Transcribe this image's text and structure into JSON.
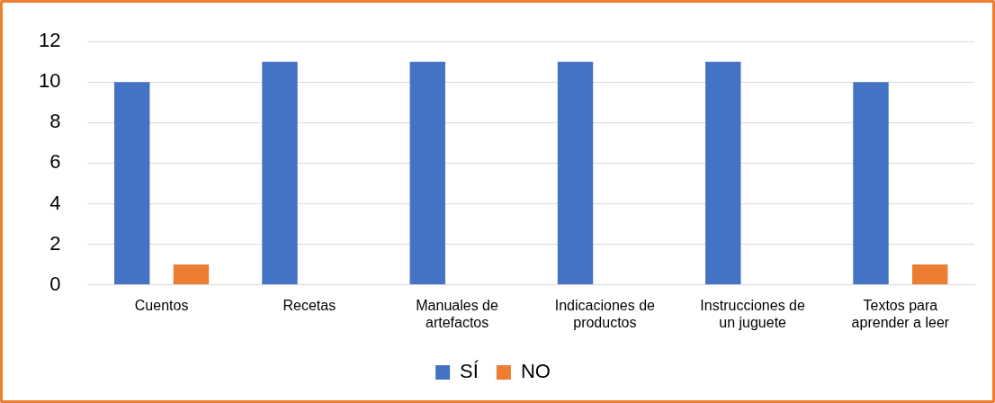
{
  "chart_data": {
    "type": "bar",
    "categories": [
      "Cuentos",
      "Recetas",
      "Manuales de artefactos",
      "Indicaciones de productos",
      "Instrucciones de un juguete",
      "Textos para aprender a leer"
    ],
    "series": [
      {
        "name": "SÍ",
        "color": "#4472c4",
        "values": [
          10,
          11,
          11,
          11,
          11,
          10
        ]
      },
      {
        "name": "NO",
        "color": "#ed7d31",
        "values": [
          1,
          0,
          0,
          0,
          0,
          1
        ]
      }
    ],
    "ylim": [
      0,
      12
    ],
    "yticks": [
      0,
      2,
      4,
      6,
      8,
      10,
      12
    ],
    "grid": "y",
    "legend": "bottom"
  }
}
